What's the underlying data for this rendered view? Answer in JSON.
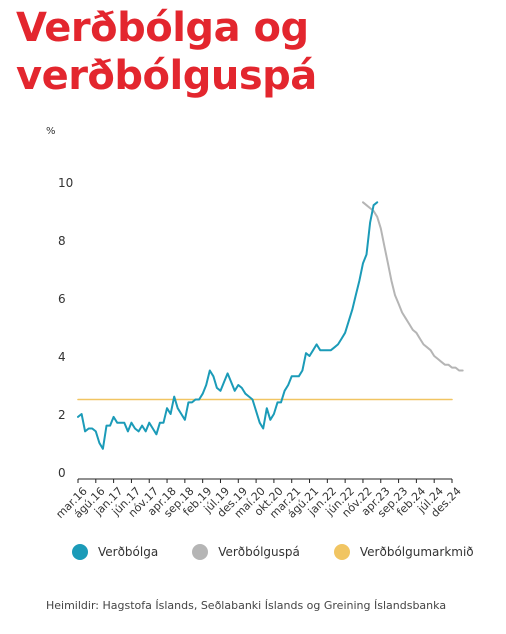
{
  "title_line1": "Verðbólga og",
  "title_line2": "verðbólguspá",
  "source": "Heimildir: Hagstofa Íslands, Seðlabanki Íslands og Greining Íslandsbanka",
  "colors": {
    "title": "#e3262e",
    "inflation": "#1b9bb8",
    "forecast": "#b5b5b5",
    "target": "#f1c562"
  },
  "chart_data": {
    "type": "line",
    "ylabel": "%",
    "ylim": [
      0,
      10
    ],
    "yticks": [
      0,
      2,
      4,
      6,
      8,
      10
    ],
    "x_start": "2016-03",
    "x_end": "2024-12",
    "xtick_labels": [
      "mar.16",
      "ágú.16",
      "jan.17",
      "jún.17",
      "nóv.17",
      "apr.18",
      "sep.18",
      "feb.19",
      "júl.19",
      "des.19",
      "maí.20",
      "okt.20",
      "mar.21",
      "ágú.21",
      "jan.22",
      "jún.22",
      "nóv.22",
      "apr.23",
      "sep.23",
      "feb.24",
      "júl.24",
      "des.24"
    ],
    "legend": [
      "Verðbólga",
      "Verðbólguspá",
      "Verðbólgumarkmið"
    ],
    "grid": false,
    "series": [
      {
        "name": "Verðbólga",
        "color": "#1b9bb8",
        "start": "2016-03",
        "values": [
          1.9,
          2.0,
          1.4,
          1.5,
          1.5,
          1.4,
          1.0,
          0.8,
          1.6,
          1.6,
          1.9,
          1.7,
          1.7,
          1.7,
          1.4,
          1.7,
          1.5,
          1.4,
          1.6,
          1.4,
          1.7,
          1.5,
          1.3,
          1.7,
          1.7,
          2.2,
          2.0,
          2.6,
          2.2,
          2.0,
          1.8,
          2.4,
          2.4,
          2.5,
          2.5,
          2.7,
          3.0,
          3.5,
          3.3,
          2.9,
          2.8,
          3.1,
          3.4,
          3.1,
          2.8,
          3.0,
          2.9,
          2.7,
          2.6,
          2.5,
          2.1,
          1.7,
          1.5,
          2.2,
          1.8,
          2.0,
          2.4,
          2.4,
          2.8,
          3.0,
          3.3,
          3.3,
          3.3,
          3.5,
          4.1,
          4.0,
          4.2,
          4.4,
          4.2,
          4.2,
          4.2,
          4.2,
          4.3,
          4.4,
          4.6,
          4.8,
          5.2,
          5.6,
          6.1,
          6.6,
          7.2,
          7.5,
          8.6,
          9.2,
          9.3
        ]
      },
      {
        "name": "Verðbólguspá",
        "color": "#b5b5b5",
        "start": "2022-11",
        "values": [
          9.3,
          9.2,
          9.1,
          9.0,
          8.8,
          8.4,
          7.8,
          7.2,
          6.6,
          6.1,
          5.8,
          5.5,
          5.3,
          5.1,
          4.9,
          4.8,
          4.6,
          4.4,
          4.3,
          4.2,
          4.0,
          3.9,
          3.8,
          3.7,
          3.7,
          3.6,
          3.6,
          3.5,
          3.5
        ]
      },
      {
        "name": "Verðbólgumarkmið",
        "color": "#f1c562",
        "start": "2016-03",
        "end": "2024-12",
        "constant": 2.5
      }
    ]
  }
}
